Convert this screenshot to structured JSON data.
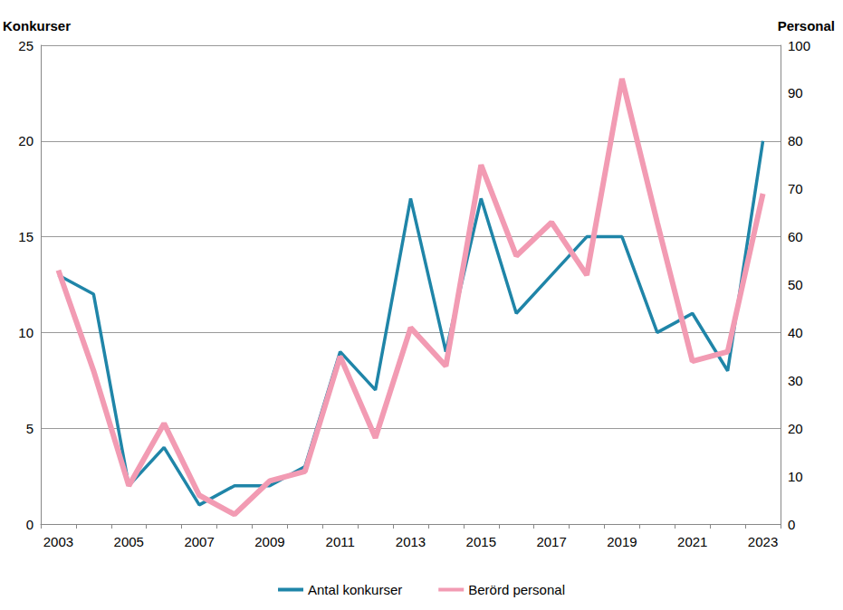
{
  "chart_data": {
    "type": "line",
    "categories": [
      "2003",
      null,
      "2005",
      null,
      "2007",
      null,
      "2009",
      null,
      "2011",
      null,
      "2013",
      null,
      "2015",
      null,
      "2017",
      null,
      "2019",
      null,
      "2021",
      null,
      "2023"
    ],
    "y_label": "Konkurser",
    "y2_label": "Personal",
    "ylim": [
      0,
      25
    ],
    "yticks": [
      0,
      5,
      10,
      15,
      20,
      25
    ],
    "y2lim": [
      0,
      100
    ],
    "y2ticks": [
      0,
      10,
      20,
      30,
      40,
      50,
      60,
      70,
      80,
      90,
      100
    ],
    "grid": true,
    "legend": "bottom",
    "marker": "none",
    "series": [
      {
        "name": "Antal konkurser",
        "color": "#1f85a8",
        "values": [
          13,
          12,
          2,
          4,
          1,
          2,
          2,
          3,
          9,
          7,
          17,
          9,
          17,
          11,
          13,
          15,
          15,
          10,
          11,
          8,
          20
        ]
      },
      {
        "name": "Berörd personal",
        "color": "#f29bb3",
        "axis": "y2",
        "values": [
          53,
          32,
          8,
          21,
          6,
          2,
          9,
          11,
          35,
          18,
          41,
          33,
          75,
          56,
          63,
          52,
          93,
          63,
          34,
          36,
          69
        ]
      }
    ]
  }
}
